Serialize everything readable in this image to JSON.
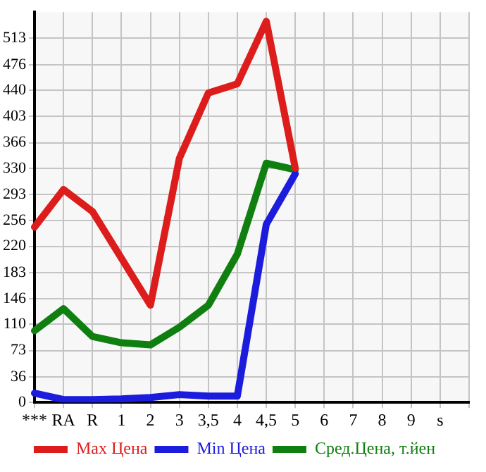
{
  "chart_data": {
    "type": "line",
    "categories": [
      "***",
      "RA",
      "R",
      "1",
      "2",
      "3",
      "3,5",
      "4",
      "4,5",
      "5",
      "6",
      "7",
      "8",
      "9",
      "s",
      null
    ],
    "series": [
      {
        "name": "Max Цена",
        "color": "#dd1c1c",
        "values": [
          247,
          300,
          269,
          203,
          137,
          344,
          436,
          449,
          537,
          330,
          null,
          null,
          null,
          null,
          null,
          null
        ]
      },
      {
        "name": "Min Цена",
        "color": "#1c1cdd",
        "values": [
          13,
          4,
          4,
          5,
          7,
          11,
          9,
          9,
          251,
          322,
          null,
          null,
          null,
          null,
          null,
          null
        ]
      },
      {
        "name": "Сред.Цена, т.йен",
        "color": "#0f7f0f",
        "values": [
          101,
          132,
          93,
          84,
          81,
          106,
          137,
          209,
          337,
          328,
          null,
          null,
          null,
          null,
          null,
          null
        ]
      }
    ],
    "ylim": [
      0,
      550
    ],
    "yticks": [
      0,
      36,
      73,
      110,
      146,
      183,
      220,
      256,
      293,
      330,
      366,
      403,
      440,
      476,
      513
    ],
    "grid": true,
    "legend": "bottom",
    "marker": "none"
  }
}
